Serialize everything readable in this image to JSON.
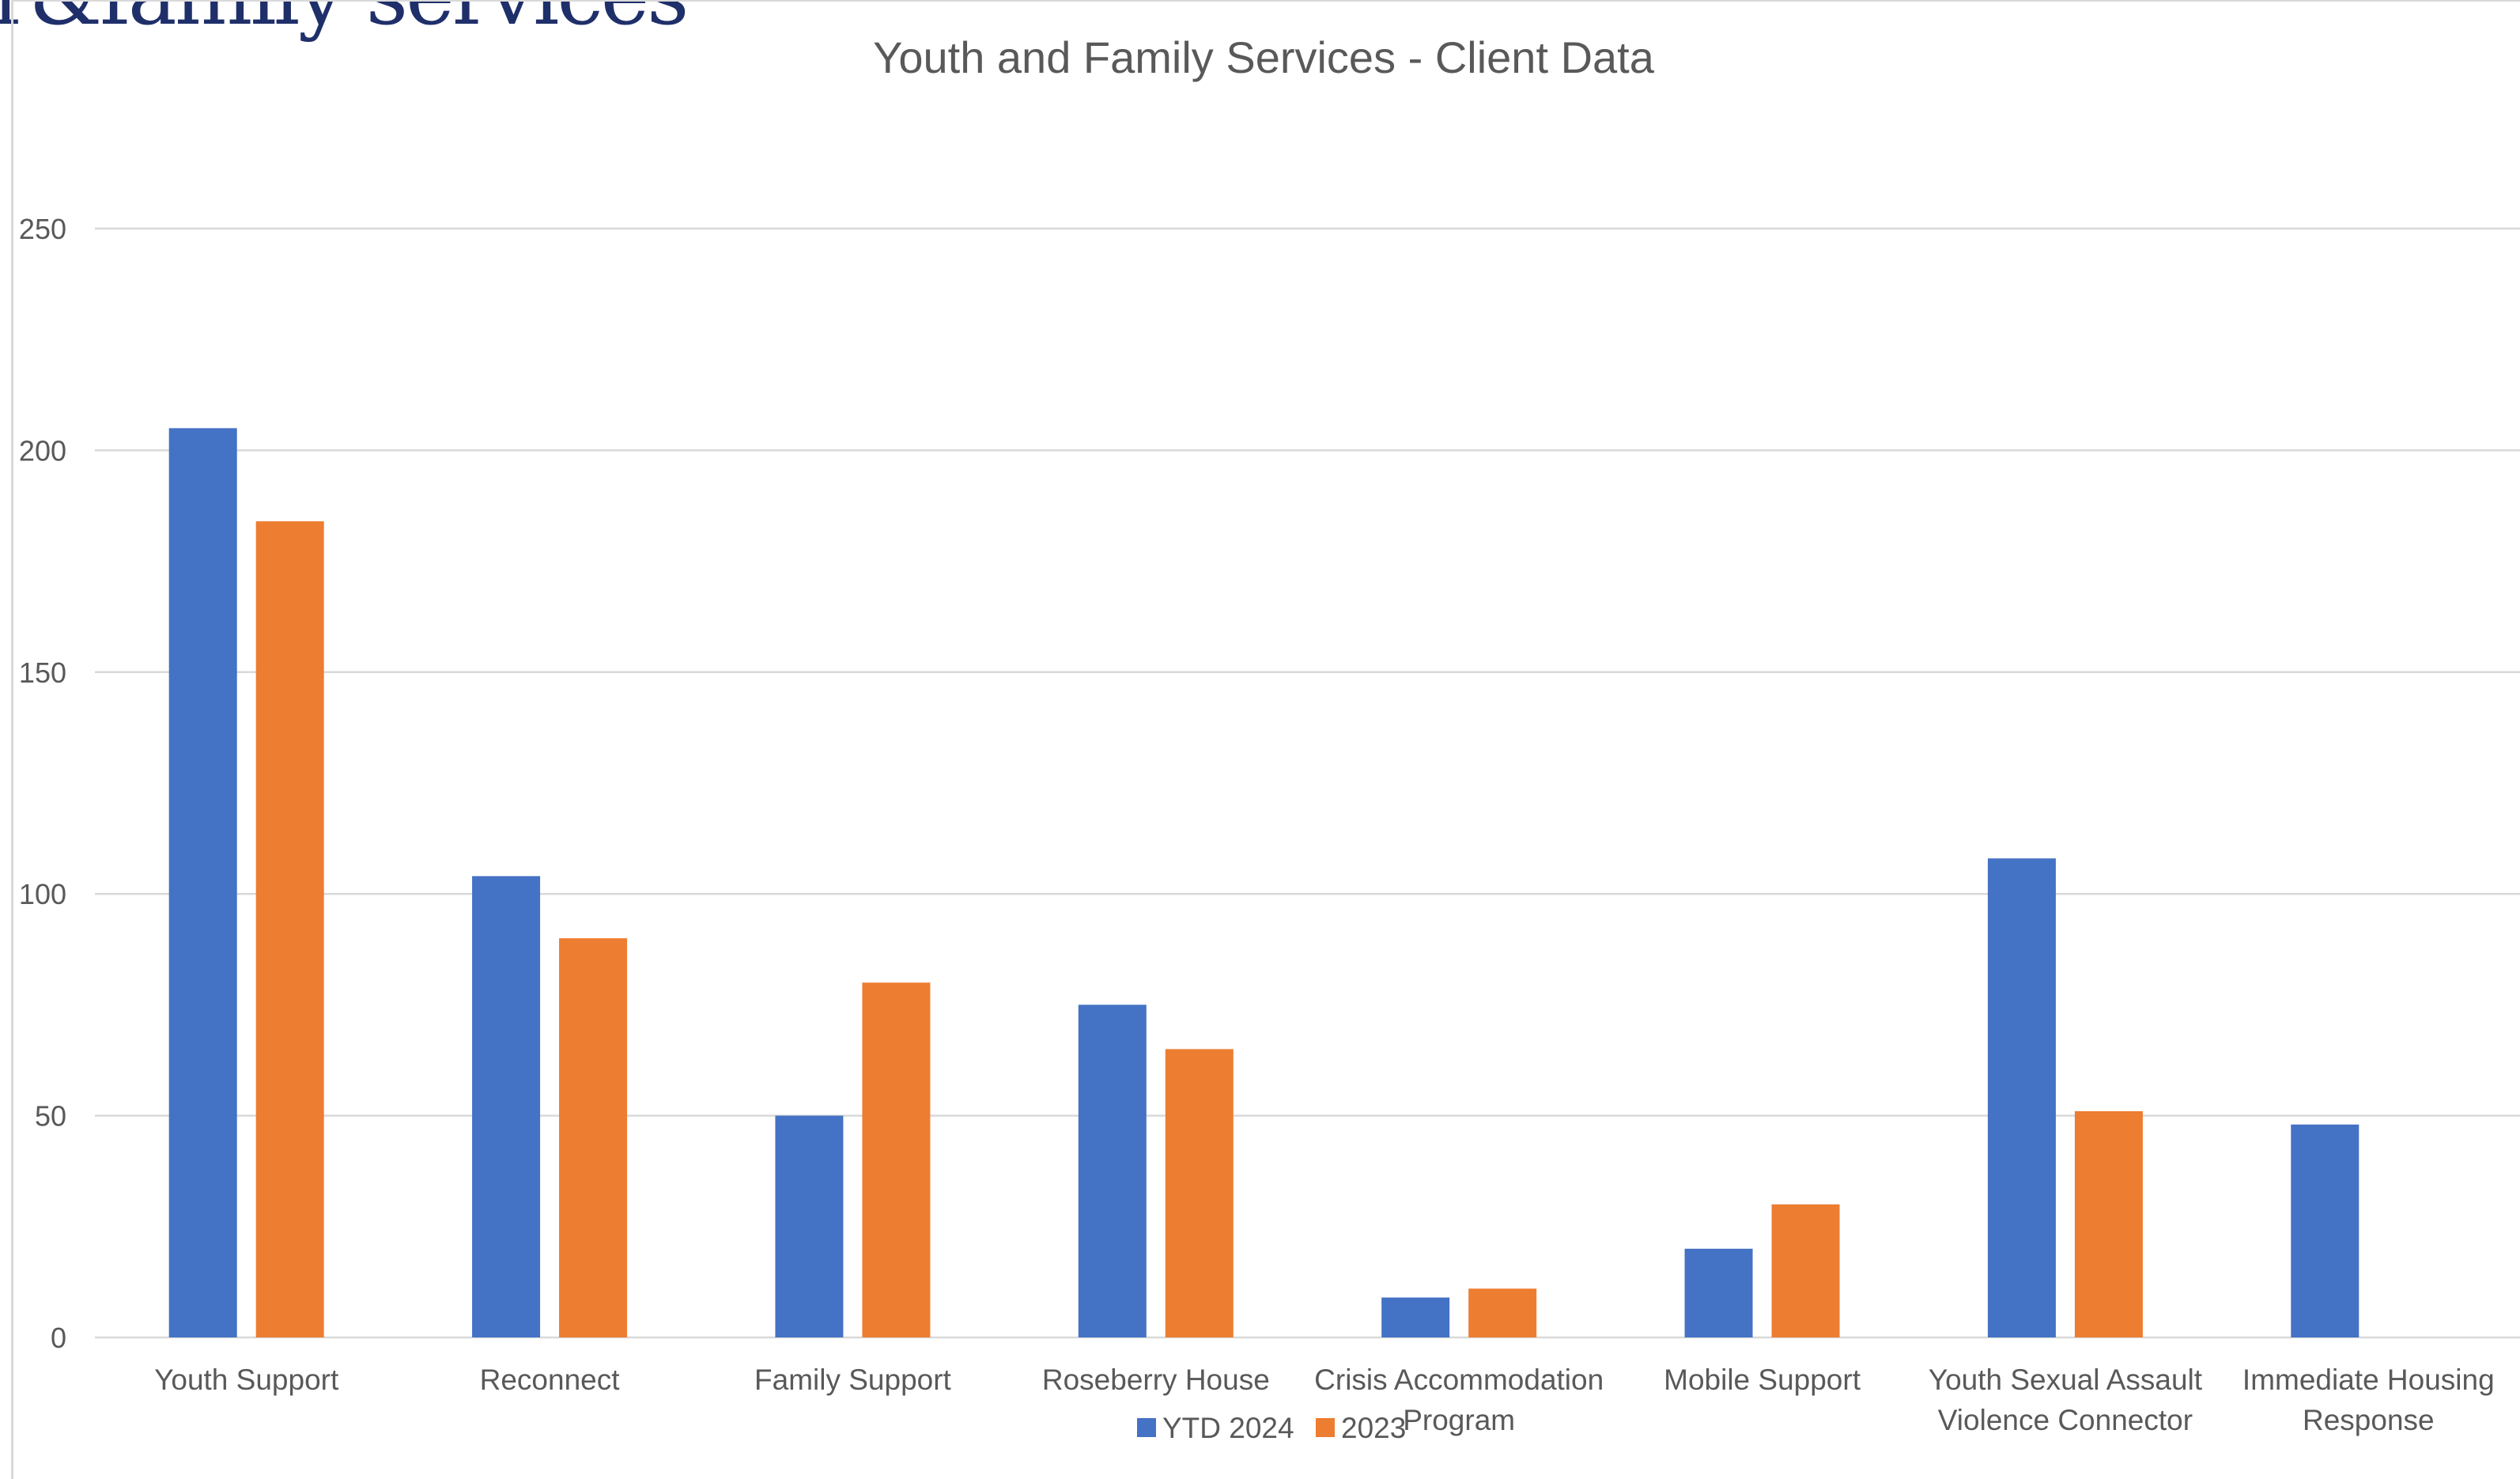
{
  "header_fragment": "r&family services",
  "chart_data": {
    "type": "bar",
    "title": "Youth and Family Services - Client Data",
    "xlabel": "",
    "ylabel": "",
    "ylim": [
      0,
      250
    ],
    "yticks": [
      0,
      50,
      100,
      150,
      200,
      250
    ],
    "grid": true,
    "legend_position": "bottom",
    "categories": [
      [
        "Youth Support"
      ],
      [
        "Reconnect"
      ],
      [
        "Family Support"
      ],
      [
        "Roseberry House"
      ],
      [
        "Crisis Accommodation",
        "Program"
      ],
      [
        "Mobile Support"
      ],
      [
        "Youth Sexual Assault",
        "Violence Connector"
      ],
      [
        "Immediate Housing",
        "Response"
      ]
    ],
    "series": [
      {
        "name": "YTD 2024",
        "color": "#4472c4",
        "values": [
          205,
          104,
          50,
          75,
          9,
          20,
          108,
          48
        ]
      },
      {
        "name": "2023",
        "color": "#ed7d31",
        "values": [
          184,
          90,
          80,
          65,
          11,
          30,
          51,
          0
        ]
      }
    ]
  }
}
